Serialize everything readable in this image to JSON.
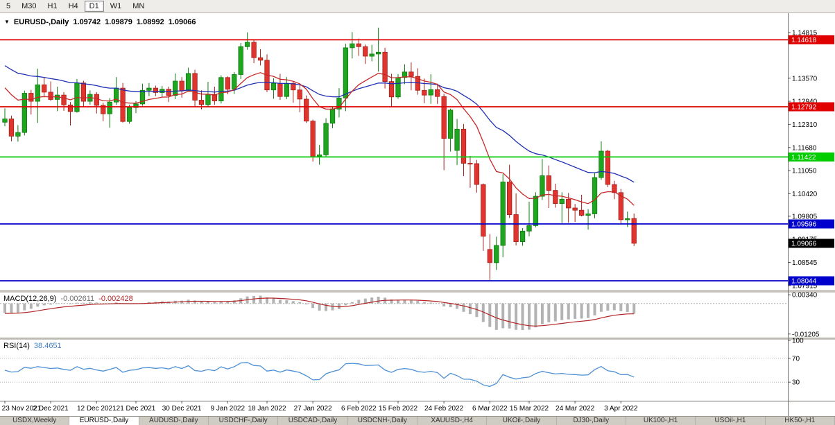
{
  "toolbar": {
    "timeframes": [
      "5",
      "M30",
      "H1",
      "H4",
      "D1",
      "W1",
      "MN"
    ],
    "active_timeframe": "D1"
  },
  "title": {
    "dropdown_icon": "▼",
    "symbol": "EURUSD-,Daily",
    "open": "1.09742",
    "high": "1.09879",
    "low": "1.08992",
    "close": "1.09066"
  },
  "macd": {
    "label": "MACD(12,26,9)",
    "value_macd": "-0.002611",
    "value_signal": "-0.002428",
    "axis_labels": [
      "0.00340",
      "-0.01205"
    ]
  },
  "rsi": {
    "label": "RSI(14)",
    "value": "38.4651",
    "axis_labels": [
      "100",
      "70",
      "30"
    ]
  },
  "tabs": {
    "items": [
      "USDX,Weekly",
      "EURUSD-,Daily",
      "AUDUSD-,Daily",
      "USDCHF-,Daily",
      "USDCAD-,Daily",
      "USDCNH-,Daily",
      "XAUUSD-,H4",
      "UKOil-,Daily",
      "DJ30-,Daily",
      "UK100-,H1",
      "USOil-,H1",
      "HK50-,H1"
    ],
    "active": "EURUSD-,Daily"
  },
  "chart_data": {
    "type": "candlestick",
    "symbol": "EURUSD-",
    "timeframe": "Daily",
    "ohlc_current": {
      "open": 1.09742,
      "high": 1.09879,
      "low": 1.08992,
      "close": 1.09066
    },
    "y_axis": {
      "min": 1.0778,
      "max": 1.15344
    },
    "price_axis_ticks": [
      "1.14815",
      "1.13570",
      "1.12940",
      "1.12310",
      "1.11680",
      "1.11050",
      "1.10420",
      "1.09805",
      "1.09175",
      "1.08545",
      "1.07915"
    ],
    "hlines": [
      {
        "price": 1.14618,
        "label": "1.14618",
        "color": "#E00000"
      },
      {
        "price": 1.12792,
        "label": "1.12792",
        "color": "#E00000"
      },
      {
        "price": 1.11422,
        "label": "1.11422",
        "color": "#00CC00"
      },
      {
        "price": 1.09596,
        "label": "1.09596",
        "color": "#0000CC"
      },
      {
        "price": 1.08044,
        "label": "1.08044",
        "color": "#0000CC"
      }
    ],
    "current_price_label": {
      "price": 1.09066,
      "text": "1.09066",
      "color": "#000000"
    },
    "overlays": [
      {
        "name": "ma-slow",
        "type": "ema",
        "period": 34,
        "seed": 1.14,
        "color": "#1F2FB4"
      },
      {
        "name": "ma-fast",
        "type": "ema",
        "period": 13,
        "seed": 1.1345,
        "color": "#C62828"
      }
    ],
    "indicators": {
      "macd": {
        "fast": 12,
        "slow": 26,
        "signal": 9,
        "axis_min": -0.0132,
        "axis_max": 0.004,
        "last_macd": -0.002611,
        "last_signal": -0.002428
      },
      "rsi": {
        "period": 14,
        "levels": [
          70,
          30
        ],
        "axis_min": 0,
        "axis_max": 100,
        "last_value": 38.4651
      }
    },
    "colors": {
      "up": "#1FA51F",
      "up_border": "#0E7A0E",
      "down": "#E0352F",
      "down_border": "#A6201C",
      "macd_hist": "#B3B3B3",
      "macd_signal": "#B22222",
      "rsi": "#4C8FD6"
    },
    "date_labels": [
      {
        "text": "23 Nov 2021",
        "index": 0
      },
      {
        "text": "2 Dec 2021",
        "index": 7
      },
      {
        "text": "12 Dec 2021",
        "index": 14
      },
      {
        "text": "21 Dec 2021",
        "index": 20
      },
      {
        "text": "30 Dec 2021",
        "index": 27
      },
      {
        "text": "9 Jan 2022",
        "index": 34
      },
      {
        "text": "18 Jan 2022",
        "index": 40
      },
      {
        "text": "27 Jan 2022",
        "index": 47
      },
      {
        "text": "6 Feb 2022",
        "index": 54
      },
      {
        "text": "15 Feb 2022",
        "index": 60
      },
      {
        "text": "24 Feb 2022",
        "index": 67
      },
      {
        "text": "6 Mar 2022",
        "index": 74
      },
      {
        "text": "15 Mar 2022",
        "index": 80
      },
      {
        "text": "24 Mar 2022",
        "index": 87
      },
      {
        "text": "3 Apr 2022",
        "index": 94
      }
    ],
    "candles": [
      [
        1.1237,
        1.1275,
        1.1226,
        1.1246
      ],
      [
        1.1246,
        1.1255,
        1.1185,
        1.1199
      ],
      [
        1.1199,
        1.1229,
        1.1184,
        1.1209
      ],
      [
        1.1209,
        1.1323,
        1.1201,
        1.1316
      ],
      [
        1.1316,
        1.1325,
        1.1258,
        1.1294
      ],
      [
        1.1294,
        1.1383,
        1.1235,
        1.1339
      ],
      [
        1.1339,
        1.136,
        1.1305,
        1.1319
      ],
      [
        1.1319,
        1.1348,
        1.1295,
        1.1299
      ],
      [
        1.1299,
        1.1334,
        1.1267,
        1.1311
      ],
      [
        1.1311,
        1.1319,
        1.1268,
        1.1284
      ],
      [
        1.1284,
        1.1292,
        1.1228,
        1.1266
      ],
      [
        1.1266,
        1.1355,
        1.1263,
        1.1344
      ],
      [
        1.1344,
        1.135,
        1.1279,
        1.1294
      ],
      [
        1.1294,
        1.1324,
        1.1285,
        1.1313
      ],
      [
        1.1313,
        1.1319,
        1.1261,
        1.1283
      ],
      [
        1.1283,
        1.129,
        1.124,
        1.126
      ],
      [
        1.126,
        1.1303,
        1.1222,
        1.1292
      ],
      [
        1.1292,
        1.136,
        1.1284,
        1.133
      ],
      [
        1.133,
        1.1344,
        1.1236,
        1.1239
      ],
      [
        1.1239,
        1.1285,
        1.1233,
        1.1277
      ],
      [
        1.1277,
        1.1295,
        1.1262,
        1.1287
      ],
      [
        1.1287,
        1.1342,
        1.1282,
        1.1324
      ],
      [
        1.1324,
        1.1344,
        1.1308,
        1.133
      ],
      [
        1.133,
        1.1337,
        1.1308,
        1.1318
      ],
      [
        1.1318,
        1.1336,
        1.1305,
        1.1327
      ],
      [
        1.1327,
        1.1334,
        1.1292,
        1.131
      ],
      [
        1.131,
        1.137,
        1.13,
        1.1349
      ],
      [
        1.1349,
        1.136,
        1.1304,
        1.1323
      ],
      [
        1.1323,
        1.1386,
        1.132,
        1.137
      ],
      [
        1.137,
        1.138,
        1.1279,
        1.1297
      ],
      [
        1.1297,
        1.1324,
        1.1272,
        1.1285
      ],
      [
        1.1285,
        1.1347,
        1.1278,
        1.1313
      ],
      [
        1.1313,
        1.1334,
        1.1285,
        1.1295
      ],
      [
        1.1295,
        1.1365,
        1.1288,
        1.1359
      ],
      [
        1.1359,
        1.1362,
        1.1313,
        1.1327
      ],
      [
        1.1327,
        1.1374,
        1.1314,
        1.1367
      ],
      [
        1.1367,
        1.1453,
        1.1355,
        1.1443
      ],
      [
        1.1443,
        1.1482,
        1.1435,
        1.1455
      ],
      [
        1.1455,
        1.1463,
        1.1398,
        1.1413
      ],
      [
        1.1413,
        1.1436,
        1.1392,
        1.1406
      ],
      [
        1.1406,
        1.1422,
        1.1319,
        1.1325
      ],
      [
        1.1325,
        1.1357,
        1.1301,
        1.1343
      ],
      [
        1.1343,
        1.1369,
        1.1298,
        1.1307
      ],
      [
        1.1307,
        1.136,
        1.13,
        1.1343
      ],
      [
        1.1343,
        1.1349,
        1.129,
        1.1325
      ],
      [
        1.1325,
        1.1339,
        1.1264,
        1.13
      ],
      [
        1.13,
        1.131,
        1.1235,
        1.124
      ],
      [
        1.124,
        1.1244,
        1.113,
        1.1144
      ],
      [
        1.1144,
        1.1175,
        1.1121,
        1.1148
      ],
      [
        1.1148,
        1.1248,
        1.1141,
        1.1234
      ],
      [
        1.1234,
        1.1279,
        1.1221,
        1.1273
      ],
      [
        1.1273,
        1.133,
        1.125,
        1.1303
      ],
      [
        1.1303,
        1.1451,
        1.1267,
        1.144
      ],
      [
        1.144,
        1.1483,
        1.1411,
        1.1451
      ],
      [
        1.1451,
        1.1465,
        1.1418,
        1.1443
      ],
      [
        1.1443,
        1.1449,
        1.1396,
        1.1417
      ],
      [
        1.1417,
        1.1448,
        1.1403,
        1.1423
      ],
      [
        1.1423,
        1.1495,
        1.1375,
        1.1428
      ],
      [
        1.1428,
        1.144,
        1.1329,
        1.1348
      ],
      [
        1.1348,
        1.1369,
        1.128,
        1.1306
      ],
      [
        1.1306,
        1.1368,
        1.1301,
        1.1359
      ],
      [
        1.1359,
        1.1395,
        1.1341,
        1.1374
      ],
      [
        1.1374,
        1.14,
        1.1324,
        1.1362
      ],
      [
        1.1362,
        1.1384,
        1.1312,
        1.1324
      ],
      [
        1.1324,
        1.1356,
        1.1289,
        1.1311
      ],
      [
        1.1311,
        1.1368,
        1.1287,
        1.1326
      ],
      [
        1.1326,
        1.1342,
        1.1287,
        1.1307
      ],
      [
        1.1307,
        1.1315,
        1.1106,
        1.1193
      ],
      [
        1.1193,
        1.1274,
        1.1157,
        1.127
      ],
      [
        1.116,
        1.1246,
        1.112,
        1.1218
      ],
      [
        1.1218,
        1.1232,
        1.109,
        1.1125
      ],
      [
        1.1125,
        1.1145,
        1.1058,
        1.1124
      ],
      [
        1.1124,
        1.1134,
        1.1045,
        1.1067
      ],
      [
        1.1067,
        1.107,
        1.0886,
        1.0926
      ],
      [
        1.089,
        1.0932,
        1.0806,
        1.0854
      ],
      [
        1.0854,
        1.0925,
        1.0834,
        1.0901
      ],
      [
        1.0901,
        1.1095,
        1.0869,
        1.1074
      ],
      [
        1.1074,
        1.1121,
        1.0976,
        1.0985
      ],
      [
        1.0985,
        1.1043,
        1.0901,
        1.0911
      ],
      [
        1.0911,
        1.0948,
        1.09,
        1.094
      ],
      [
        1.094,
        1.102,
        1.0926,
        1.0955
      ],
      [
        1.0955,
        1.1046,
        1.095,
        1.1035
      ],
      [
        1.1035,
        1.1137,
        1.1025,
        1.1091
      ],
      [
        1.1091,
        1.1119,
        1.1003,
        1.1051
      ],
      [
        1.1051,
        1.1069,
        1.1004,
        1.1015
      ],
      [
        1.1015,
        1.1046,
        1.0962,
        1.1027
      ],
      [
        1.1027,
        1.1044,
        1.0963,
        1.1003
      ],
      [
        1.1003,
        1.1014,
        1.0965,
        1.0997
      ],
      [
        1.0997,
        1.1039,
        1.098,
        1.0983
      ],
      [
        1.0983,
        1.1,
        1.0944,
        1.0987
      ],
      [
        1.0987,
        1.11,
        1.0975,
        1.1086
      ],
      [
        1.1086,
        1.1185,
        1.108,
        1.1158
      ],
      [
        1.1158,
        1.1162,
        1.106,
        1.1067
      ],
      [
        1.1067,
        1.1077,
        1.1027,
        1.1045
      ],
      [
        1.1045,
        1.1055,
        1.096,
        1.0971
      ],
      [
        1.0971,
        1.0993,
        1.0951,
        1.0974
      ],
      [
        1.09742,
        1.09879,
        1.08992,
        1.09066
      ]
    ]
  }
}
